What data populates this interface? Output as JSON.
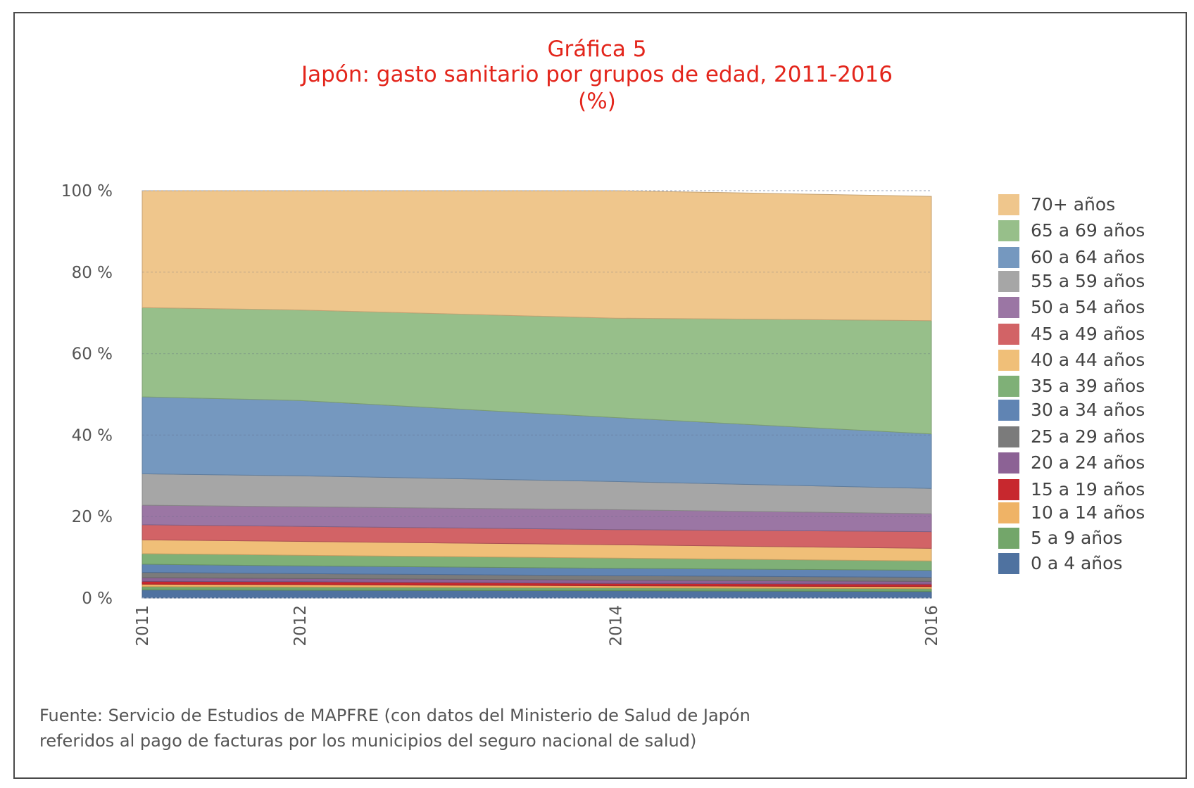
{
  "title": {
    "line1": "Gráfica 5",
    "line2": "Japón: gasto sanitario por grupos de edad, 2011-2016",
    "line3": "(%)"
  },
  "source": {
    "line1": "Fuente: Servicio de Estudios de MAPFRE (con datos del Ministerio de Salud de Japón",
    "line2": "referidos al pago de facturas por los municipios del seguro nacional de salud)"
  },
  "chart_data": {
    "type": "area",
    "stacked": true,
    "x": [
      2011,
      2012,
      2014,
      2016
    ],
    "x_tick_labels": [
      "2011",
      "2012",
      "2014",
      "2016"
    ],
    "ylim": [
      0,
      100
    ],
    "y_ticks": [
      0,
      20,
      40,
      60,
      80,
      100
    ],
    "y_tick_labels": [
      "0 %",
      "20 %",
      "40 %",
      "60 %",
      "80 %",
      "100 %"
    ],
    "grid": true,
    "legend_position": "right",
    "series": [
      {
        "name": "0 a 4  años",
        "color": "#4f72a0",
        "values": [
          2.0,
          1.9,
          1.8,
          1.6
        ]
      },
      {
        "name": "5 a 9  años",
        "color": "#73a66a",
        "values": [
          0.8,
          0.8,
          0.7,
          0.7
        ]
      },
      {
        "name": "10 a 14  años",
        "color": "#efb366",
        "values": [
          0.6,
          0.6,
          0.5,
          0.5
        ]
      },
      {
        "name": "15 a 19  años",
        "color": "#c7282e",
        "values": [
          0.7,
          0.7,
          0.6,
          0.6
        ]
      },
      {
        "name": "20 a 24  años",
        "color": "#8c6295",
        "values": [
          0.9,
          0.8,
          0.8,
          0.7
        ]
      },
      {
        "name": "25 a 29  años",
        "color": "#7b7b7b",
        "values": [
          1.3,
          1.2,
          1.1,
          1.0
        ]
      },
      {
        "name": "30 a 34  años",
        "color": "#6084b3",
        "values": [
          2.0,
          1.9,
          1.8,
          1.7
        ]
      },
      {
        "name": "35 a 39  años",
        "color": "#7fb077",
        "values": [
          2.6,
          2.6,
          2.5,
          2.3
        ]
      },
      {
        "name": "40 a 44  años",
        "color": "#f0bf78",
        "values": [
          3.4,
          3.4,
          3.3,
          3.1
        ]
      },
      {
        "name": "45 a 49  años",
        "color": "#d26366",
        "values": [
          3.7,
          3.7,
          3.7,
          4.1
        ]
      },
      {
        "name": "50 a 54  años",
        "color": "#9b76a4",
        "values": [
          4.8,
          4.8,
          4.9,
          4.4
        ]
      },
      {
        "name": "55 a 59  años",
        "color": "#a6a6a6",
        "values": [
          7.7,
          7.6,
          6.9,
          6.2
        ]
      },
      {
        "name": "60 a 64  años",
        "color": "#7598bf",
        "values": [
          18.9,
          18.5,
          15.7,
          13.4
        ]
      },
      {
        "name": "65 a 69  años",
        "color": "#97bf8a",
        "values": [
          21.9,
          22.2,
          24.4,
          27.8
        ]
      },
      {
        "name": "70+  años",
        "color": "#efc68c",
        "values": [
          28.7,
          29.3,
          31.3,
          30.5
        ]
      }
    ]
  }
}
